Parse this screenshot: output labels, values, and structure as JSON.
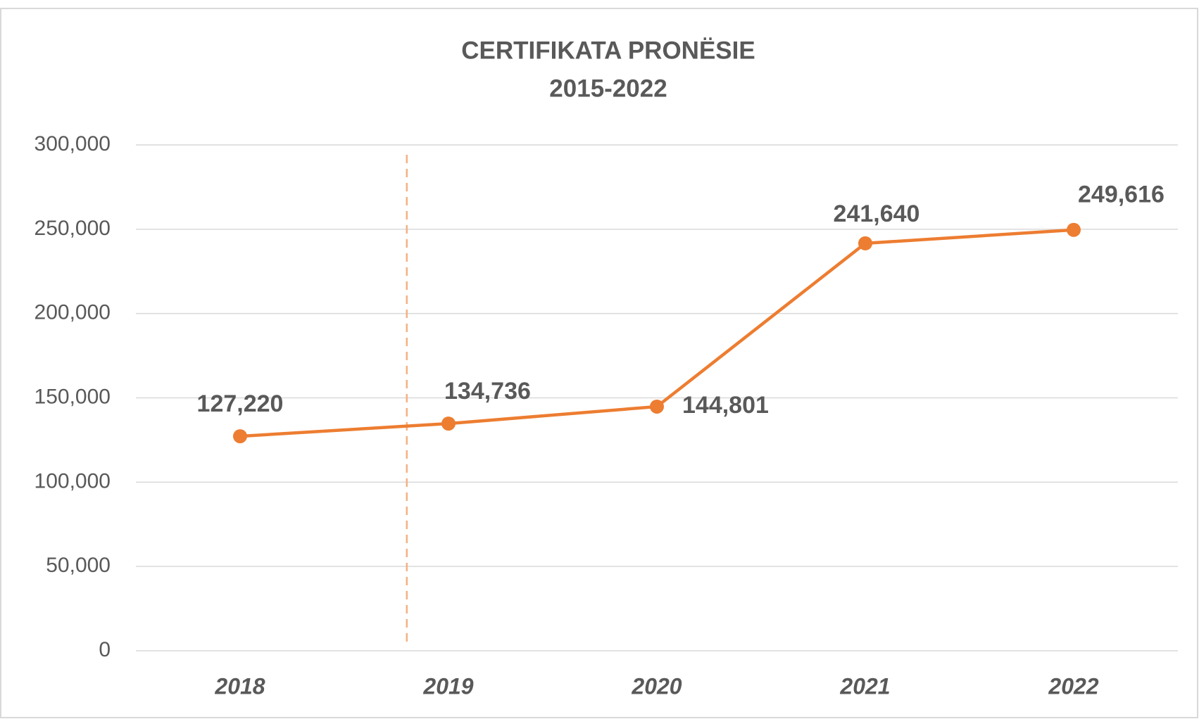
{
  "chart_data": {
    "type": "line",
    "title": "CERTIFIKATA PRONËSIE",
    "subtitle": "2015-2022",
    "categories": [
      "2018",
      "2019",
      "2020",
      "2021",
      "2022"
    ],
    "series": [
      {
        "name": "Certifikata pronësie",
        "color": "#ed7d31",
        "values": [
          127220,
          134736,
          144801,
          241640,
          249616
        ],
        "value_labels": [
          "127,220",
          "134,736",
          "144,801",
          "241,640",
          "249,616"
        ]
      }
    ],
    "ylim": [
      0,
      300000
    ],
    "yticks": [
      0,
      {
        "value": 50000,
        "label": "50,000"
      },
      {
        "value": 100000,
        "label": "100,000"
      },
      {
        "value": 150000,
        "label": "150,000"
      },
      {
        "value": 200000,
        "label": "200,000"
      },
      {
        "value": 250000,
        "label": "250,000"
      },
      {
        "value": 300000,
        "label": "300,000"
      }
    ],
    "grid": true
  }
}
